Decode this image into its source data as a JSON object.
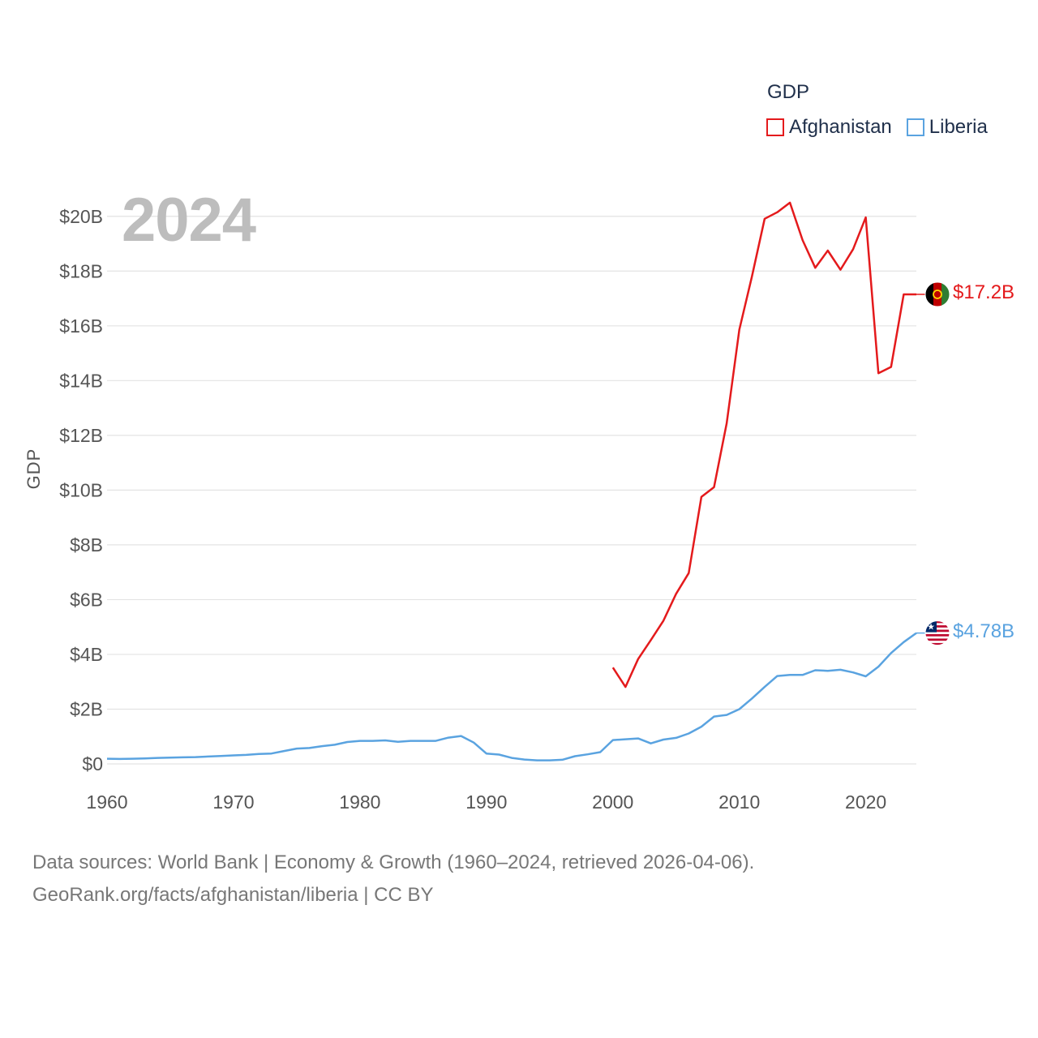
{
  "legend": {
    "title": "GDP",
    "items": [
      {
        "label": "Afghanistan",
        "color": "#e41a1c"
      },
      {
        "label": "Liberia",
        "color": "#5aa3e0"
      }
    ]
  },
  "year_display": "2024",
  "footer": {
    "line1": "Data sources: World Bank | Economy & Growth (1960–2024, retrieved 2026-04-06).",
    "line2": "GeoRank.org/facts/afghanistan/liberia | CC BY"
  },
  "chart_data": {
    "type": "line",
    "title": "GDP",
    "xlabel": "",
    "ylabel": "GDP",
    "xlim": [
      1960,
      2024
    ],
    "ylim": [
      0,
      21
    ],
    "yunit": "billion USD",
    "xticks": [
      1960,
      1970,
      1980,
      1990,
      2000,
      2010,
      2020
    ],
    "yticks": [
      {
        "value": 0,
        "label": "$0"
      },
      {
        "value": 2,
        "label": "$2B"
      },
      {
        "value": 4,
        "label": "$4B"
      },
      {
        "value": 6,
        "label": "$6B"
      },
      {
        "value": 8,
        "label": "$8B"
      },
      {
        "value": 10,
        "label": "$10B"
      },
      {
        "value": 12,
        "label": "$12B"
      },
      {
        "value": 14,
        "label": "$14B"
      },
      {
        "value": 16,
        "label": "$16B"
      },
      {
        "value": 18,
        "label": "$18B"
      },
      {
        "value": 20,
        "label": "$20B"
      }
    ],
    "grid": true,
    "series": [
      {
        "name": "Afghanistan",
        "color": "#e41a1c",
        "end_label": "$17.2B",
        "x": [
          2000,
          2001,
          2002,
          2003,
          2004,
          2005,
          2006,
          2007,
          2008,
          2009,
          2010,
          2011,
          2012,
          2013,
          2014,
          2015,
          2016,
          2017,
          2018,
          2019,
          2020,
          2021,
          2022,
          2023,
          2024
        ],
        "values": [
          3.52,
          2.81,
          3.83,
          4.52,
          5.23,
          6.21,
          6.97,
          9.75,
          10.11,
          12.44,
          15.86,
          17.81,
          19.91,
          20.15,
          20.5,
          19.13,
          18.12,
          18.75,
          18.05,
          18.8,
          19.96,
          14.27,
          14.5,
          17.15,
          17.15
        ]
      },
      {
        "name": "Liberia",
        "color": "#5aa3e0",
        "end_label": "$4.78B",
        "x": [
          1960,
          1961,
          1962,
          1963,
          1964,
          1965,
          1966,
          1967,
          1968,
          1969,
          1970,
          1971,
          1972,
          1973,
          1974,
          1975,
          1976,
          1977,
          1978,
          1979,
          1980,
          1981,
          1982,
          1983,
          1984,
          1985,
          1986,
          1987,
          1988,
          1989,
          1990,
          1991,
          1992,
          1993,
          1994,
          1995,
          1996,
          1997,
          1998,
          1999,
          2000,
          2001,
          2002,
          2003,
          2004,
          2005,
          2006,
          2007,
          2008,
          2009,
          2010,
          2011,
          2012,
          2013,
          2014,
          2015,
          2016,
          2017,
          2018,
          2019,
          2020,
          2021,
          2022,
          2023,
          2024
        ],
        "values": [
          0.19,
          0.18,
          0.19,
          0.2,
          0.22,
          0.23,
          0.24,
          0.25,
          0.27,
          0.29,
          0.31,
          0.33,
          0.36,
          0.38,
          0.47,
          0.56,
          0.58,
          0.65,
          0.7,
          0.8,
          0.84,
          0.84,
          0.86,
          0.81,
          0.84,
          0.84,
          0.84,
          0.96,
          1.02,
          0.78,
          0.38,
          0.34,
          0.22,
          0.16,
          0.13,
          0.13,
          0.15,
          0.28,
          0.35,
          0.43,
          0.87,
          0.9,
          0.93,
          0.75,
          0.89,
          0.95,
          1.11,
          1.36,
          1.73,
          1.79,
          2.0,
          2.39,
          2.81,
          3.21,
          3.25,
          3.25,
          3.42,
          3.4,
          3.44,
          3.34,
          3.2,
          3.55,
          4.05,
          4.45,
          4.78
        ]
      }
    ]
  }
}
